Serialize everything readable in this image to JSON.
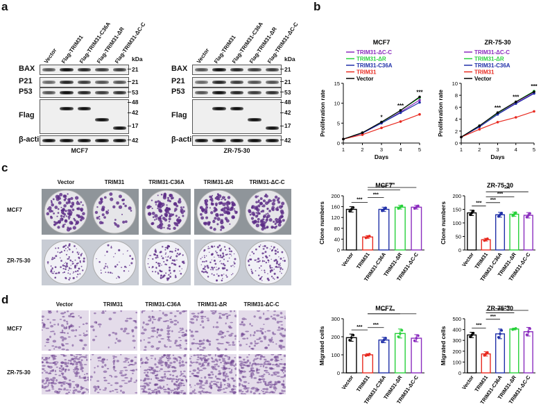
{
  "panel_letters": {
    "a": "a",
    "b": "b",
    "c": "c",
    "d": "d"
  },
  "panel_a": {
    "lanes": [
      "Vector",
      "Flag-TRIM31",
      "Flag-TRIM31-C36A",
      "Flag-TRIM31-ΔR",
      "Flag-TRIM31-ΔC-C"
    ],
    "kda_header": "kDa",
    "blots": [
      {
        "title": "MCF7",
        "rows": [
          {
            "label": "BAX",
            "kda": [
              "21"
            ]
          },
          {
            "label": "P21",
            "kda": [
              "21"
            ]
          },
          {
            "label": "P53",
            "kda": [
              "53"
            ]
          },
          {
            "label": "Flag",
            "kda": [
              "48",
              "42",
              "17"
            ]
          },
          {
            "label": "β-actin",
            "kda": [
              "42"
            ]
          }
        ]
      },
      {
        "title": "ZR-75-30",
        "rows": [
          {
            "label": "BAX",
            "kda": [
              "21"
            ]
          },
          {
            "label": "P21",
            "kda": [
              "21"
            ]
          },
          {
            "label": "P53",
            "kda": [
              "53"
            ]
          },
          {
            "label": "Flag",
            "kda": [
              "48",
              "42",
              "17"
            ]
          },
          {
            "label": "β-actin",
            "kda": [
              "42"
            ]
          }
        ]
      }
    ]
  },
  "panel_c": {
    "columns": [
      "Vector",
      "TRIM31",
      "TRIM31-C36A",
      "TRIM31-ΔR",
      "TRIM31-ΔC-C"
    ],
    "rows": [
      "MCF7",
      "ZR-75-30"
    ]
  },
  "panel_d": {
    "columns": [
      "Vector",
      "TRIM31",
      "TRIM31-C36A",
      "TRIM31-ΔR",
      "TRIM31-ΔC-C"
    ],
    "rows": [
      "MCF7",
      "ZR-75-30"
    ]
  },
  "colors": {
    "vector": "#000000",
    "trim31": "#e8291f",
    "c36a": "#1f2fa8",
    "dr": "#27d13a",
    "dcc": "#8a2bbe"
  },
  "chart_data": [
    {
      "type": "line",
      "title": "MCF7",
      "xlabel": "Days",
      "ylabel": "Proliferation rate",
      "x": [
        1,
        2,
        3,
        4,
        5
      ],
      "xlim": [
        1,
        5
      ],
      "ylim": [
        0,
        15
      ],
      "yticks": [
        0,
        5,
        10,
        15
      ],
      "legend": [
        "TRIM31-ΔC-C",
        "TRIM31-ΔR",
        "TRIM31-C36A",
        "TRIM31",
        "Vector"
      ],
      "series": [
        {
          "name": "TRIM31-ΔC-C",
          "values": [
            1,
            2.5,
            5,
            7.8,
            10.8
          ]
        },
        {
          "name": "TRIM31-ΔR",
          "values": [
            1,
            2.6,
            5.2,
            8.2,
            11.4
          ]
        },
        {
          "name": "TRIM31-C36A",
          "values": [
            1,
            2.5,
            5,
            7.6,
            10.2
          ]
        },
        {
          "name": "TRIM31",
          "values": [
            1,
            2.1,
            3.8,
            5.4,
            7.2
          ]
        },
        {
          "name": "Vector",
          "values": [
            1,
            2.6,
            5.3,
            8.2,
            11.6
          ]
        }
      ],
      "annotations": [
        {
          "x": 3,
          "text": "*"
        },
        {
          "x": 4,
          "text": "***"
        },
        {
          "x": 5,
          "text": "***"
        }
      ]
    },
    {
      "type": "line",
      "title": "ZR-75-30",
      "xlabel": "Days",
      "ylabel": "Proliferation rate",
      "x": [
        1,
        2,
        3,
        4,
        5
      ],
      "xlim": [
        1,
        5
      ],
      "ylim": [
        0,
        10
      ],
      "yticks": [
        0,
        2,
        4,
        6,
        8,
        10
      ],
      "legend": [
        "TRIM31-ΔC-C",
        "TRIM31-ΔR",
        "TRIM31-C36A",
        "TRIM31",
        "Vector"
      ],
      "series": [
        {
          "name": "TRIM31-ΔC-C",
          "values": [
            1,
            2.8,
            4.9,
            6.7,
            8.4
          ]
        },
        {
          "name": "TRIM31-ΔR",
          "values": [
            1,
            2.9,
            5.0,
            6.9,
            8.7
          ]
        },
        {
          "name": "TRIM31-C36A",
          "values": [
            1,
            2.7,
            4.8,
            6.6,
            8.3
          ]
        },
        {
          "name": "TRIM31",
          "values": [
            1,
            2.3,
            3.5,
            4.3,
            5.3
          ]
        },
        {
          "name": "Vector",
          "values": [
            1,
            2.9,
            5.1,
            6.9,
            8.6
          ]
        }
      ],
      "annotations": [
        {
          "x": 3,
          "text": "***"
        },
        {
          "x": 4,
          "text": "***"
        },
        {
          "x": 5,
          "text": "***"
        }
      ]
    },
    {
      "type": "bar",
      "title": "MCF7",
      "ylabel": "Clone numbers",
      "ylim": [
        0,
        200
      ],
      "yticks": [
        0,
        40,
        80,
        120,
        160,
        200
      ],
      "categories": [
        "Vector",
        "TRIM31",
        "TRIM31-C36A",
        "TRIM31-ΔR",
        "TRIM31-ΔC-C"
      ],
      "values": [
        150,
        48,
        150,
        158,
        158
      ],
      "errors": [
        10,
        5,
        8,
        7,
        7
      ],
      "annotations": [
        "***",
        "***",
        "***",
        "***"
      ]
    },
    {
      "type": "bar",
      "title": "ZR-75-30",
      "ylabel": "Clone numbers",
      "ylim": [
        0,
        200
      ],
      "yticks": [
        0,
        50,
        100,
        150,
        200
      ],
      "categories": [
        "Vector",
        "TRIM31",
        "TRIM31-C36A",
        "TRIM31-ΔR",
        "TRIM31-ΔC-C"
      ],
      "values": [
        137,
        38,
        130,
        132,
        128
      ],
      "errors": [
        10,
        5,
        9,
        8,
        10
      ],
      "annotations": [
        "***",
        "***",
        "***",
        "***"
      ]
    },
    {
      "type": "bar",
      "title": "MCF7",
      "ylabel": "Migrated cells",
      "ylim": [
        0,
        300
      ],
      "yticks": [
        0,
        100,
        200,
        300
      ],
      "categories": [
        "Vector",
        "TRIM31",
        "TRIM31-C36A",
        "TRIM31-ΔR",
        "TRIM31-ΔC-C"
      ],
      "values": [
        195,
        100,
        182,
        218,
        192
      ],
      "errors": [
        20,
        6,
        15,
        25,
        20
      ],
      "annotations": [
        "***",
        "***",
        "***",
        "***"
      ]
    },
    {
      "type": "bar",
      "title": "ZR-75-30",
      "ylabel": "Migrated cells",
      "ylim": [
        0,
        500
      ],
      "yticks": [
        0,
        100,
        200,
        300,
        400,
        500
      ],
      "categories": [
        "Vector",
        "TRIM31",
        "TRIM31-C36A",
        "TRIM31-ΔR",
        "TRIM31-ΔC-C"
      ],
      "values": [
        350,
        175,
        360,
        405,
        380
      ],
      "errors": [
        25,
        20,
        45,
        8,
        40
      ],
      "annotations": [
        "***",
        "***",
        "***",
        "***"
      ]
    }
  ]
}
